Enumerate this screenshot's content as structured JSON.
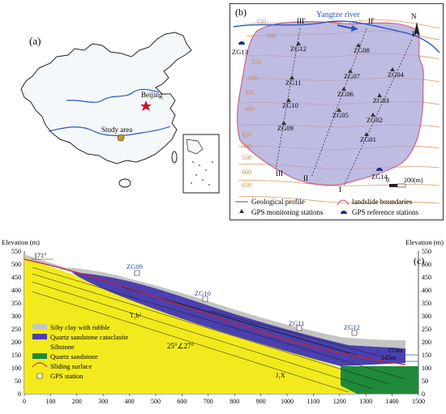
{
  "panel_a": {
    "label": "(a)",
    "city_label": "Beijing",
    "study_label": "Study area"
  },
  "panel_b": {
    "label": "(b)",
    "river_label": "Yangtze river",
    "north_label": "N",
    "profile_labels": [
      "III'",
      "II'",
      "I'",
      "III",
      "II",
      "I"
    ],
    "stations": [
      "ZG12",
      "ZG08",
      "ZG07",
      "ZG04",
      "ZG11",
      "ZG06",
      "ZG03",
      "ZG10",
      "ZG05",
      "ZG02",
      "ZG09",
      "ZG01"
    ],
    "reference_stations": [
      "ZG13",
      "ZG14"
    ],
    "contours": [
      "150",
      "200",
      "250",
      "300",
      "350",
      "400",
      "450",
      "500",
      "550",
      "600",
      "650"
    ],
    "scale_zero": "0",
    "scale_label": "200(m)",
    "legend": [
      {
        "icon": "profile-line",
        "text": "Geological profile"
      },
      {
        "icon": "boundary-line",
        "text": "landslide boundaries"
      },
      {
        "icon": "gps-monitor",
        "text": "GPS monitoring stations"
      },
      {
        "icon": "gps-reference",
        "text": "GPS reference stations"
      }
    ]
  },
  "panel_c": {
    "label": "(c)",
    "elevation_label_left": "Elevation (m)",
    "elevation_label_right": "Elevation (m)",
    "y_ticks": [
      "550",
      "500",
      "450",
      "400",
      "350",
      "300",
      "250",
      "200",
      "150",
      "100",
      "50",
      "0"
    ],
    "x_ticks": [
      "0",
      "100",
      "200",
      "300",
      "400",
      "500",
      "600",
      "700",
      "800",
      "900",
      "1000",
      "1100",
      "1200",
      "1300",
      "1400",
      "1500"
    ],
    "orientation": "171°",
    "dip": "25°∠27°",
    "stratum_upper": "T₂b²",
    "stratum_lower": "J₁X",
    "stations": [
      "ZG09",
      "ZG10",
      "ZG11",
      "ZG12"
    ],
    "level_high": "175m",
    "level_low": "145m",
    "legend": [
      {
        "key": "silty",
        "text": "Silty clay with rubble",
        "color": "#c4c4c4"
      },
      {
        "key": "cataclasite",
        "text": "Quartz sandstone cataclasite",
        "color": "#4a40b0"
      },
      {
        "key": "siltstone",
        "text": "Siltstone",
        "color": "#f2ea1c"
      },
      {
        "key": "sandstone",
        "text": "Quartz sandstone",
        "color": "#1f8a3a"
      },
      {
        "key": "sliding",
        "text": "Sliding surface",
        "color": "#cc2222"
      },
      {
        "key": "gps",
        "text": "GPS station",
        "color": "#ffffff"
      }
    ]
  }
}
